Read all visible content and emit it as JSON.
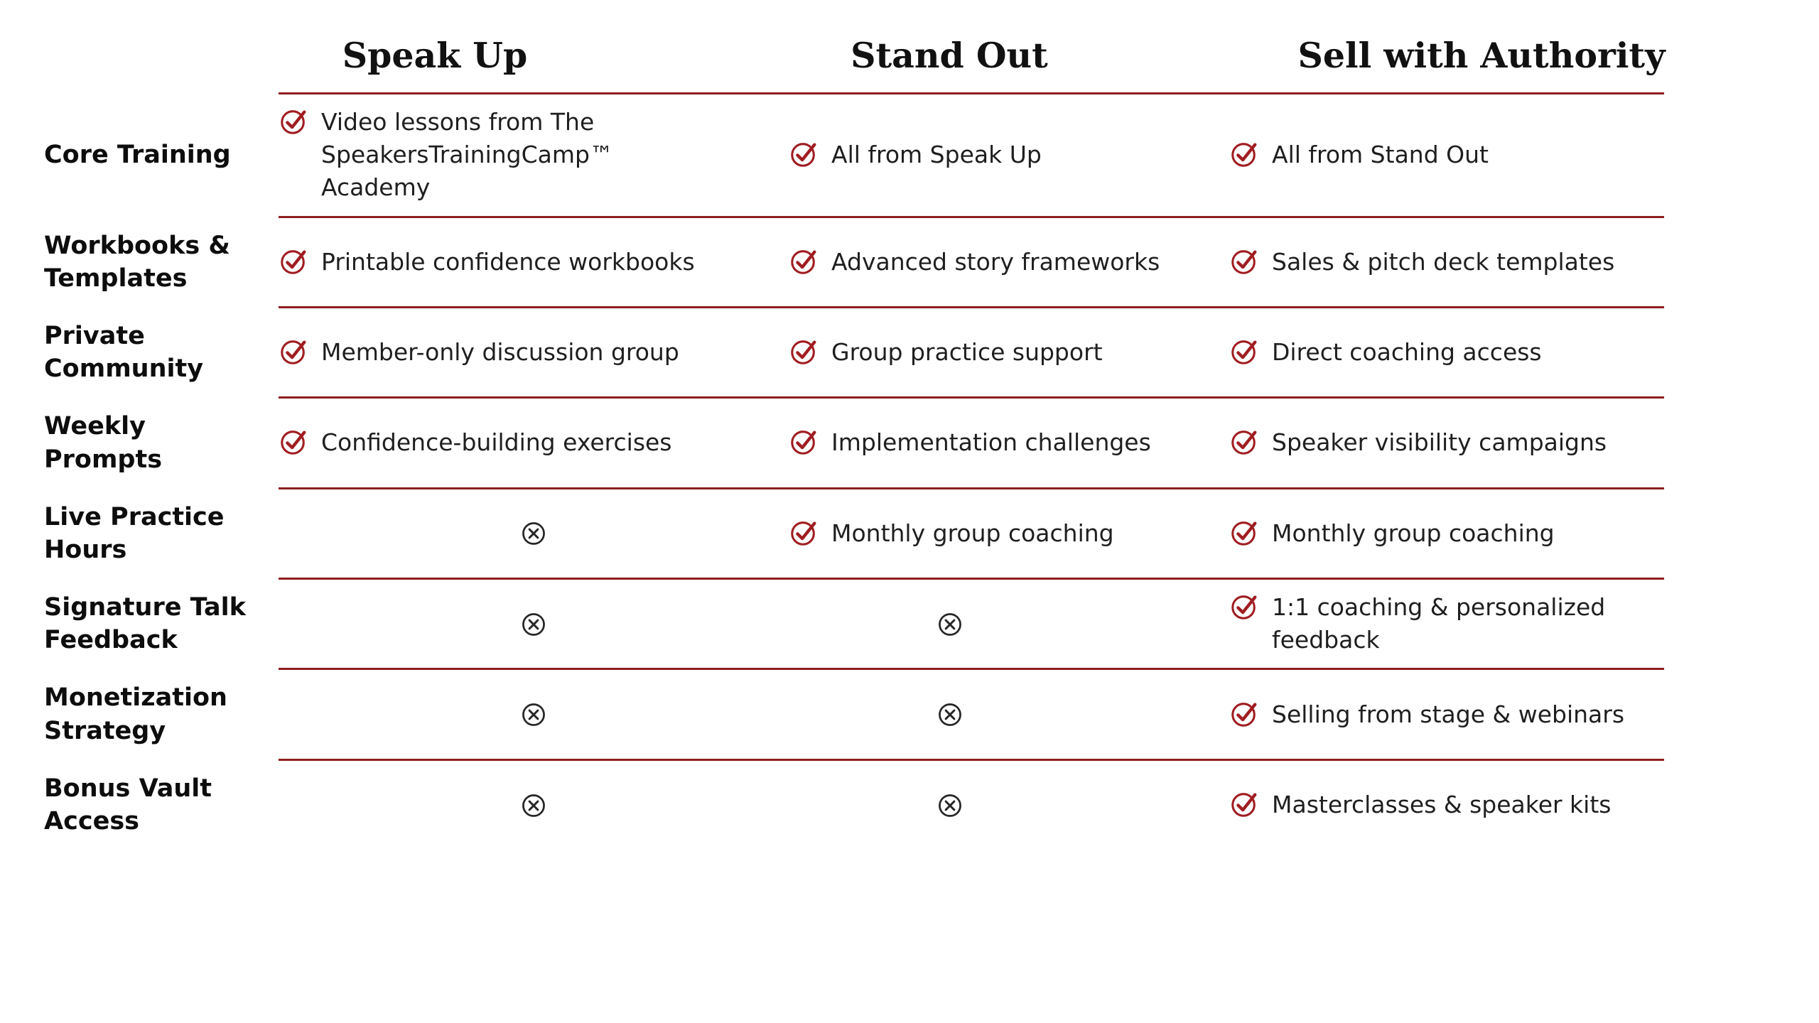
{
  "colors": {
    "accent": "#8E1E1E",
    "check": "#A01D21",
    "x": "#262626",
    "label_text": "#0d0d0d",
    "cell_text": "#1f1f1f"
  },
  "header": {
    "columns": [
      "Speak Up",
      "Stand Out",
      "Sell with Authority"
    ]
  },
  "rows": [
    {
      "label": "Core Training",
      "cells": [
        {
          "icon": "check",
          "text": "Video lessons from The SpeakersTrainingCamp™ Academy"
        },
        {
          "icon": "check",
          "text": "All from Speak Up"
        },
        {
          "icon": "check",
          "text": "All from Stand Out"
        }
      ]
    },
    {
      "label": "Workbooks & Templates",
      "cells": [
        {
          "icon": "check",
          "text": "Printable confidence workbooks"
        },
        {
          "icon": "check",
          "text": "Advanced story frameworks"
        },
        {
          "icon": "check",
          "text": "Sales & pitch deck templates"
        }
      ]
    },
    {
      "label": "Private Community",
      "cells": [
        {
          "icon": "check",
          "text": "Member-only discussion group"
        },
        {
          "icon": "check",
          "text": "Group practice support"
        },
        {
          "icon": "check",
          "text": "Direct coaching access"
        }
      ]
    },
    {
      "label": "Weekly Prompts",
      "cells": [
        {
          "icon": "check",
          "text": "Confidence-building exercises"
        },
        {
          "icon": "check",
          "text": "Implementation challenges"
        },
        {
          "icon": "check",
          "text": "Speaker visibility campaigns"
        }
      ]
    },
    {
      "label": "Live Practice Hours",
      "cells": [
        {
          "icon": "x",
          "text": ""
        },
        {
          "icon": "check",
          "text": "Monthly group coaching"
        },
        {
          "icon": "check",
          "text": "Monthly group coaching"
        }
      ]
    },
    {
      "label": "Signature Talk Feedback",
      "cells": [
        {
          "icon": "x",
          "text": ""
        },
        {
          "icon": "x",
          "text": ""
        },
        {
          "icon": "check",
          "text": "1:1 coaching & personalized feedback"
        }
      ]
    },
    {
      "label": "Monetization Strategy",
      "cells": [
        {
          "icon": "x",
          "text": ""
        },
        {
          "icon": "x",
          "text": ""
        },
        {
          "icon": "check",
          "text": "Selling from stage & webinars"
        }
      ]
    },
    {
      "label": "Bonus Vault Access",
      "cells": [
        {
          "icon": "x",
          "text": ""
        },
        {
          "icon": "x",
          "text": ""
        },
        {
          "icon": "check",
          "text": "Masterclasses & speaker kits"
        }
      ]
    }
  ],
  "chart_data": {
    "type": "table",
    "title": "",
    "columns": [
      "",
      "Speak Up",
      "Stand Out",
      "Sell with Authority"
    ],
    "rows": [
      [
        "Core Training",
        "Video lessons from The SpeakersTrainingCamp™ Academy",
        "All from Speak Up",
        "All from Stand Out"
      ],
      [
        "Workbooks & Templates",
        "Printable confidence workbooks",
        "Advanced story frameworks",
        "Sales & pitch deck templates"
      ],
      [
        "Private Community",
        "Member-only discussion group",
        "Group practice support",
        "Direct coaching access"
      ],
      [
        "Weekly Prompts",
        "Confidence-building exercises",
        "Implementation challenges",
        "Speaker visibility campaigns"
      ],
      [
        "Live Practice Hours",
        "✗",
        "Monthly group coaching",
        "Monthly group coaching"
      ],
      [
        "Signature Talk Feedback",
        "✗",
        "✗",
        "1:1 coaching & personalized feedback"
      ],
      [
        "Monetization Strategy",
        "✗",
        "✗",
        "Selling from stage & webinars"
      ],
      [
        "Bonus Vault Access",
        "✗",
        "✗",
        "Masterclasses & speaker kits"
      ]
    ]
  }
}
